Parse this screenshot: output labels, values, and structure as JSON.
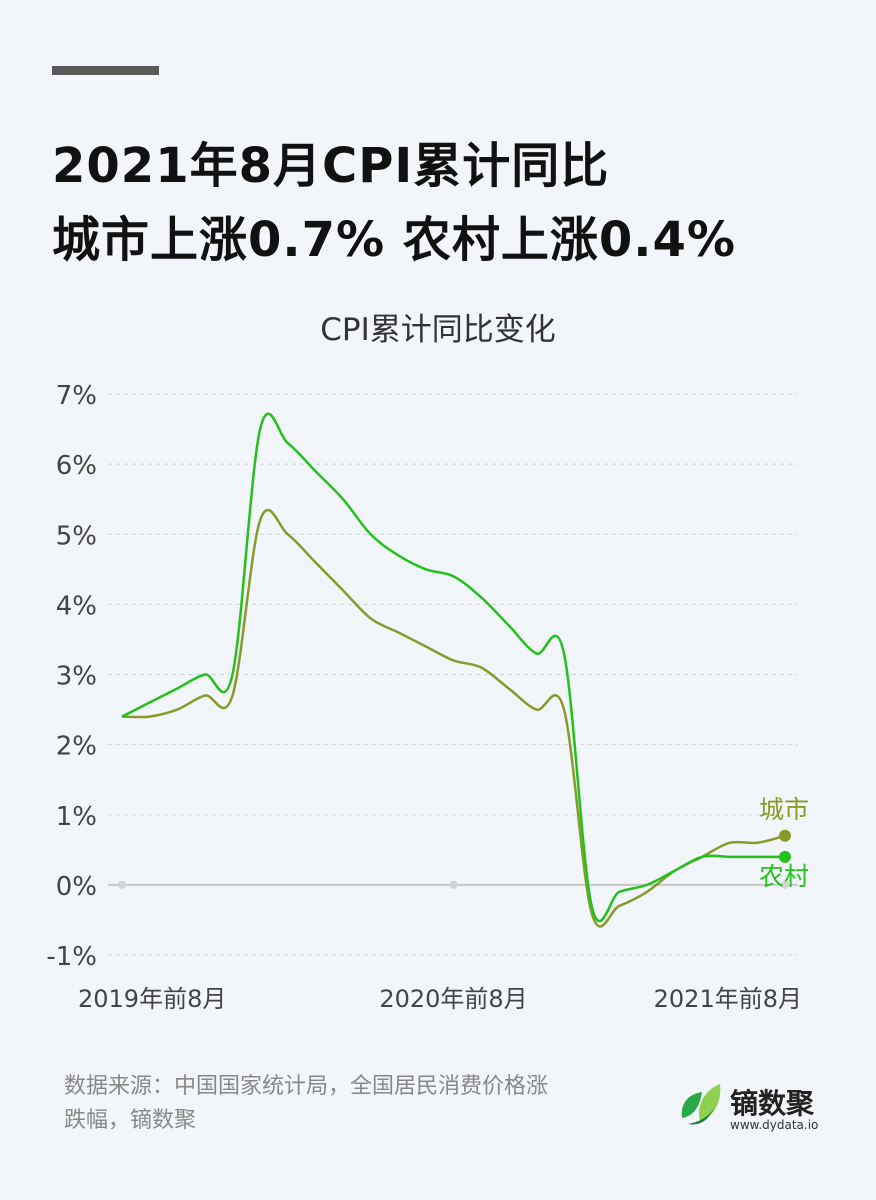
{
  "header": {
    "line1": "2021年8月CPI累计同比",
    "line2": "城市上涨0.7%  农村上涨0.4%"
  },
  "chart_data": {
    "type": "line",
    "title": "CPI累计同比变化",
    "yticks": [
      "7%",
      "6%",
      "5%",
      "4%",
      "3%",
      "2%",
      "1%",
      "0%",
      "-1%"
    ],
    "ylim": [
      -1,
      7
    ],
    "xticks": [
      "2019年前8月",
      "2020年前8月",
      "2021年前8月"
    ],
    "x": [
      "2019-08",
      "2019-09",
      "2019-10",
      "2019-11",
      "2019-12",
      "2020-01",
      "2020-02",
      "2020-03",
      "2020-04",
      "2020-05",
      "2020-06",
      "2020-07",
      "2020-08",
      "2020-09",
      "2020-10",
      "2020-11",
      "2020-12",
      "2021-01",
      "2021-02",
      "2021-03",
      "2021-04",
      "2021-05",
      "2021-06",
      "2021-07",
      "2021-08"
    ],
    "series": [
      {
        "name": "城市",
        "color": "#8a9a2a",
        "values": [
          2.4,
          2.4,
          2.5,
          2.7,
          2.7,
          5.2,
          5.0,
          4.6,
          4.2,
          3.8,
          3.6,
          3.4,
          3.2,
          3.1,
          2.8,
          2.5,
          2.5,
          -0.4,
          -0.3,
          -0.1,
          0.2,
          0.4,
          0.6,
          0.6,
          0.7
        ]
      },
      {
        "name": "农村",
        "color": "#22c21c",
        "values": [
          2.4,
          2.6,
          2.8,
          3.0,
          3.0,
          6.5,
          6.3,
          5.9,
          5.5,
          5.0,
          4.7,
          4.5,
          4.4,
          4.1,
          3.7,
          3.3,
          3.3,
          -0.3,
          -0.1,
          0.0,
          0.2,
          0.4,
          0.4,
          0.4,
          0.4
        ]
      }
    ],
    "labels": [
      "城市",
      "农村"
    ]
  },
  "footer": {
    "source_line1": "数据来源：中国国家统计局，全国居民消费价格涨",
    "source_line2": "跌幅，镝数聚",
    "brand_name": "镝数聚",
    "brand_url": "www.dydata.io"
  }
}
